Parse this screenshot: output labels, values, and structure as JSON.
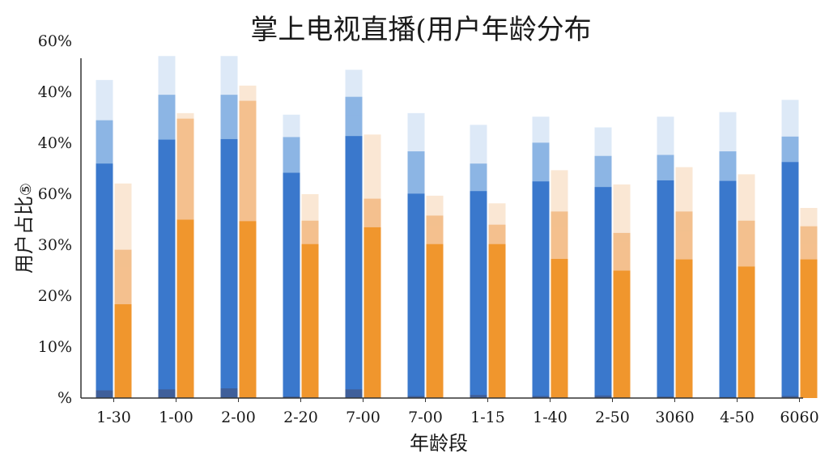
{
  "colors": {
    "blue_dark": "#3a78cc",
    "blue_mid": "#8cb5e4",
    "blue_light": "#dde9f7",
    "blue_base": "#3f5f9a",
    "orange_dark": "#f0962d",
    "orange_mid": "#f3c08e",
    "orange_light": "#fae7d4",
    "axis": "#333333"
  },
  "chart_data": {
    "type": "bar",
    "title": "掌上电视直播(用户年龄分布",
    "xlabel": "年龄段",
    "ylabel": "用户占比",
    "ylabel_suffix": "⑤",
    "y_tick_labels": [
      "%",
      "10%",
      "20%",
      "30%",
      "60%",
      "40%",
      "40%",
      "60%"
    ],
    "grid": false,
    "legend": "none",
    "categories": [
      "1-30",
      "1-00",
      "2-00",
      "2-20",
      "7-00",
      "7-00",
      "1-15",
      "1-40",
      "2-50",
      "3060",
      "4-50",
      "6060"
    ],
    "series": [
      {
        "group": "blue",
        "layers_top": {
          "base": [
            1.5,
            1.7,
            1.9,
            0.3,
            1.7,
            0.4,
            0.6,
            0.4,
            0.5,
            0.3,
            0.2,
            0.4
          ],
          "dark": [
            46.0,
            50.7,
            50.8,
            44.2,
            51.4,
            40.1,
            40.6,
            42.5,
            41.4,
            42.7,
            42.6,
            46.3
          ],
          "mid1": [
            50.3,
            50.7,
            50.8,
            44.2,
            55.5,
            40.1,
            40.6,
            42.5,
            41.4,
            42.7,
            42.6,
            46.3
          ],
          "mid2": [
            54.5,
            59.5,
            59.5,
            51.2,
            59.1,
            48.4,
            46.0,
            50.1,
            47.5,
            47.7,
            48.4,
            51.3
          ],
          "light": [
            62.4,
            67.1,
            67.1,
            55.6,
            64.4,
            55.9,
            53.6,
            55.2,
            53.1,
            55.2,
            56.1,
            58.5
          ]
        }
      },
      {
        "group": "orange",
        "layers_top": {
          "dark": [
            18.4,
            35.0,
            34.7,
            30.2,
            33.5,
            30.2,
            30.2,
            27.3,
            25.0,
            27.2,
            25.8,
            27.2
          ],
          "mid1": [
            25.8,
            54.8,
            58.3,
            33.3,
            39.1,
            33.9,
            34.0,
            33.6,
            30.6,
            32.7,
            31.0,
            30.4
          ],
          "mid2": [
            29.1,
            54.8,
            58.3,
            34.8,
            39.1,
            35.8,
            34.0,
            36.6,
            32.4,
            36.6,
            34.8,
            33.7
          ],
          "light": [
            42.1,
            55.9,
            61.3,
            40.0,
            51.7,
            39.7,
            38.2,
            44.7,
            41.9,
            45.3,
            43.9,
            37.3
          ]
        }
      }
    ]
  }
}
